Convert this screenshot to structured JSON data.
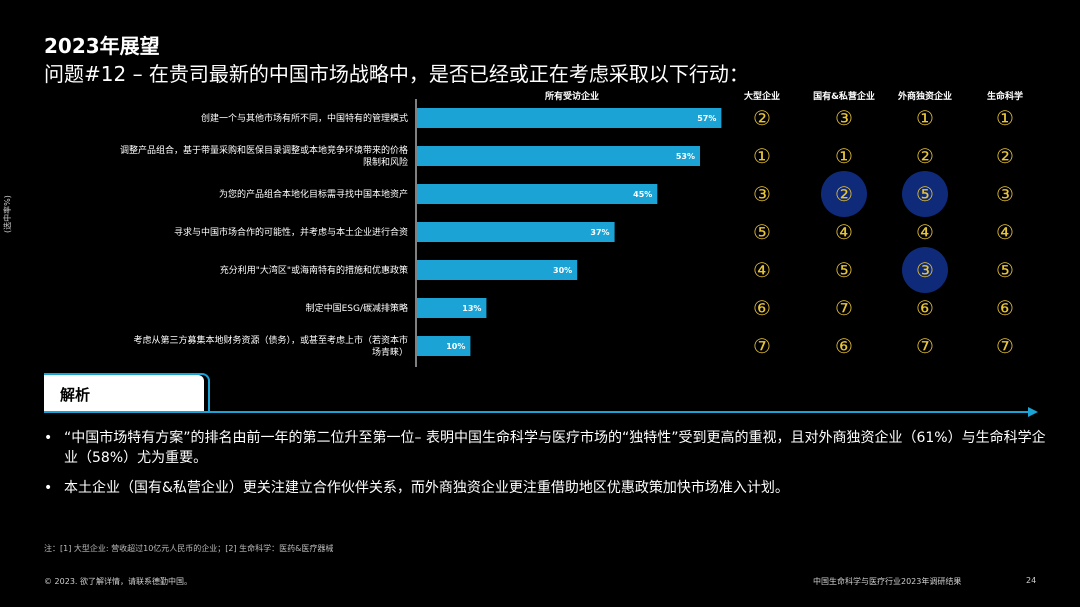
{
  "header": {
    "title": "2023年展望",
    "subtitle": "问题#12 – 在贵司最新的中国市场战略中，是否已经或正在考虑采取以下行动："
  },
  "y_axis_label": "(选中率%)",
  "chart_data": {
    "type": "bar",
    "orientation": "horizontal",
    "categories": [
      [
        "创建一个与其他市场有所不同，中国特有的管理模式"
      ],
      [
        "调整产品组合，基于带量采购和医保目录调整或本地竞争环境带来的价格",
        "限制和风险"
      ],
      [
        "为您的产品组合本地化目标需寻找中国本地资产"
      ],
      [
        "寻求与中国市场合作的可能性，并考虑与本土企业进行合资"
      ],
      [
        "充分利用\"大湾区\"或海南特有的措施和优惠政策"
      ],
      [
        "制定中国ESG/碳减排策略"
      ],
      [
        "考虑从第三方募集本地财务资源（债务），或甚至考虑上市（若资本市",
        "场青睐）"
      ]
    ],
    "series": [
      {
        "name": "所有受访企业",
        "values": [
          57,
          53,
          45,
          37,
          30,
          13,
          10
        ],
        "labels": [
          "57%",
          "53%",
          "45%",
          "37%",
          "30%",
          "13%",
          "10%"
        ],
        "color": "#1aa3d4"
      }
    ],
    "xlim": [
      0,
      100
    ]
  },
  "rank_table": {
    "columns": [
      "大型企业",
      "国有&私营企业",
      "外商独资企业",
      "生命科学"
    ],
    "rows": [
      [
        "②",
        "③",
        "①",
        "①"
      ],
      [
        "①",
        "①",
        "②",
        "②"
      ],
      [
        "③",
        "②",
        "⑤",
        "③"
      ],
      [
        "⑤",
        "④",
        "④",
        "④"
      ],
      [
        "④",
        "⑤",
        "③",
        "⑤"
      ],
      [
        "⑥",
        "⑦",
        "⑥",
        "⑥"
      ],
      [
        "⑦",
        "⑥",
        "⑦",
        "⑦"
      ]
    ],
    "highlighted_cells": [
      [
        2,
        1
      ],
      [
        2,
        2
      ],
      [
        4,
        2
      ]
    ],
    "rank_color": "#e8c43a",
    "highlight_color": "#0e2a78"
  },
  "analysis": {
    "label": "解析",
    "bullets": [
      "“中国市场特有方案”的排名由前一年的第二位升至第一位– 表明中国生命科学与医疗市场的“独特性”受到更高的重视，且对外商独资企业（61%）与生命科学企业（58%）尤为重要。",
      "本土企业（国有&私营企业）更关注建立合作伙伴关系，而外商独资企业更注重借助地区优惠政策加快市场准入计划。"
    ]
  },
  "footer": {
    "footnote": "注：[1] 大型企业: 营收超过10亿元人民币的企业；[2] 生命科学：医药&医疗器械",
    "copyright": "© 2023. 欲了解详情，请联系德勤中国。",
    "report_name": "中国生命科学与医疗行业2023年调研结果",
    "page_number": "24"
  }
}
